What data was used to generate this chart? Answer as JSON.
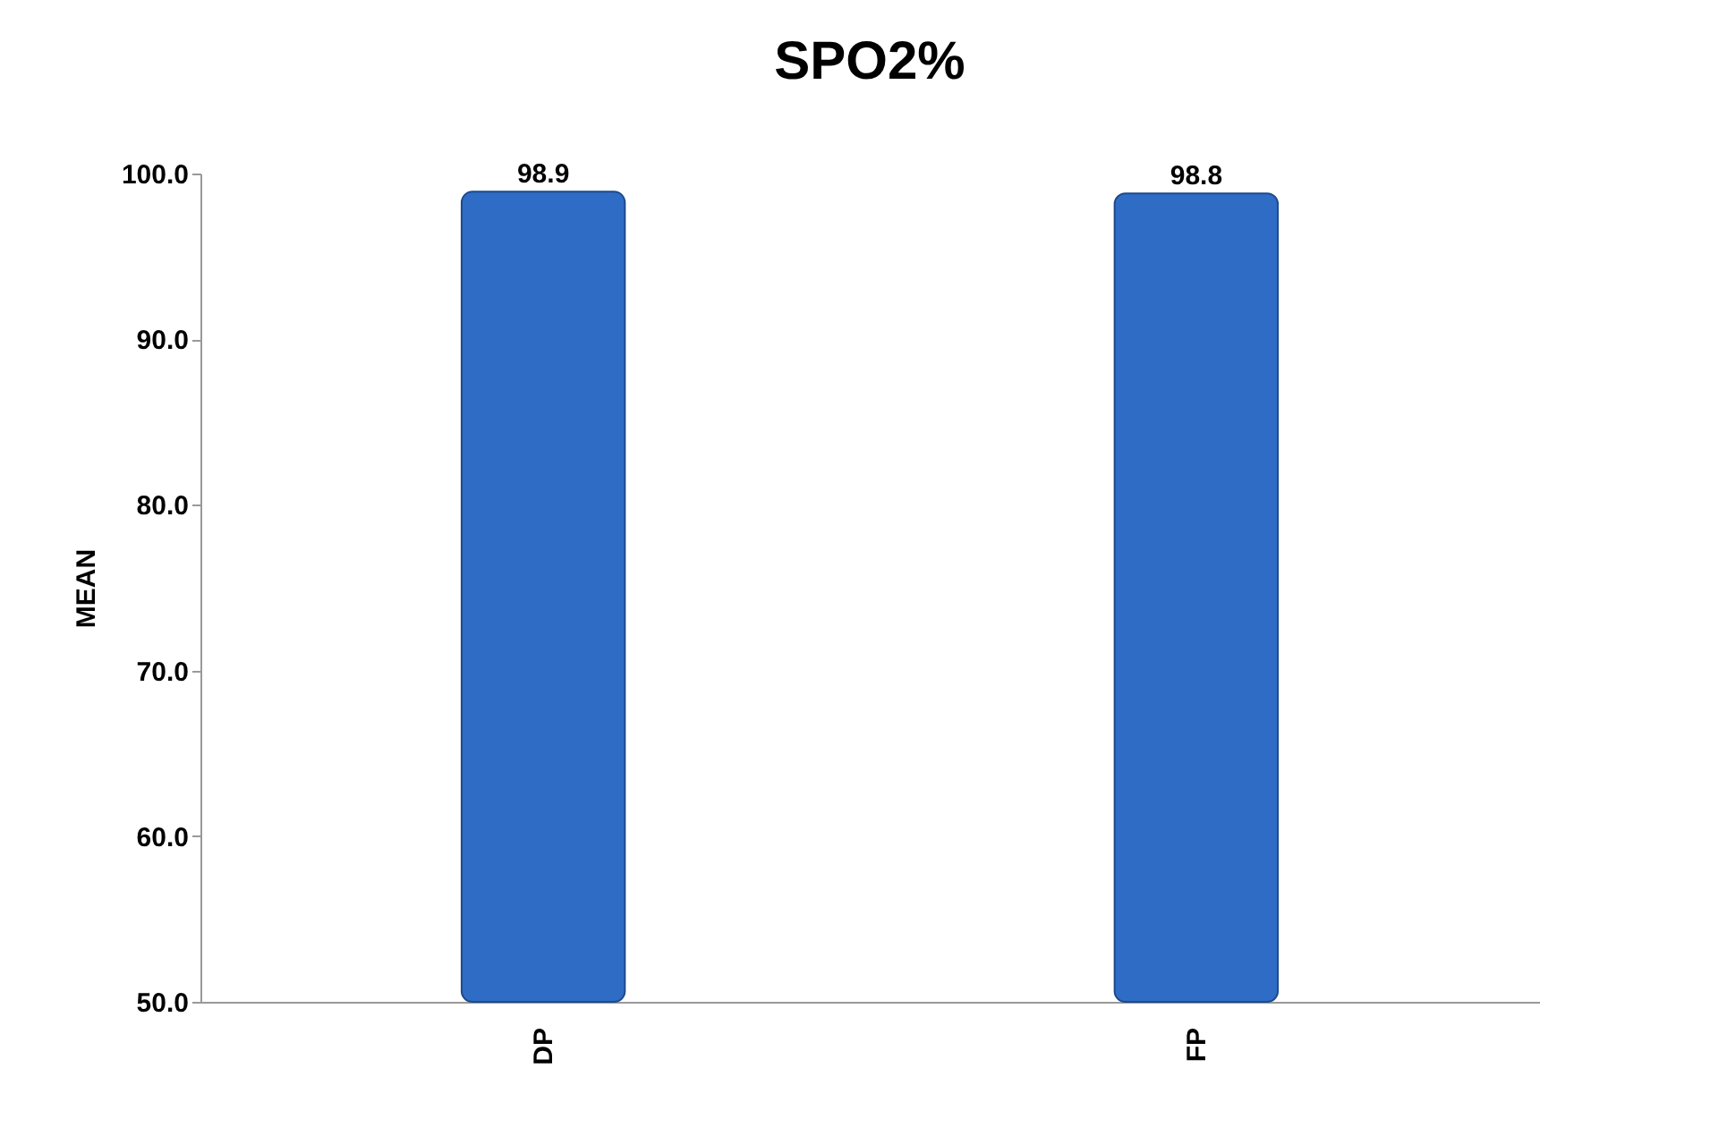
{
  "chart_data": {
    "type": "bar",
    "title": "SPO2%",
    "ylabel": "MEAN",
    "categories": [
      "DP",
      "FP"
    ],
    "values": [
      98.9,
      98.8
    ],
    "color": "#2f6cc6",
    "ylim": [
      50,
      100
    ],
    "yticks": [
      {
        "value": 50,
        "label": "50.0"
      },
      {
        "value": 60,
        "label": "60.0"
      },
      {
        "value": 70,
        "label": "70.0"
      },
      {
        "value": 80,
        "label": "80.0"
      },
      {
        "value": 90,
        "label": "90.0"
      },
      {
        "value": 100,
        "label": "100.0"
      }
    ],
    "data_labels": true
  }
}
